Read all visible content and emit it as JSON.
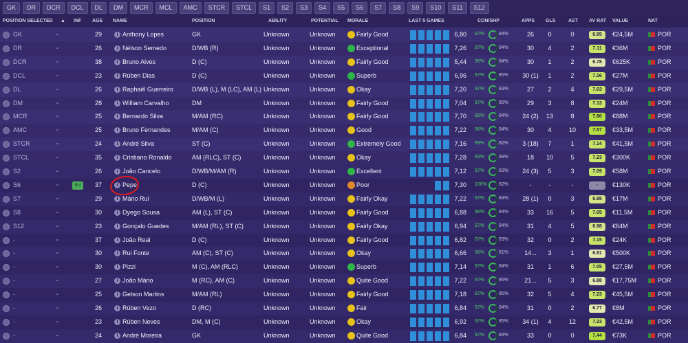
{
  "tabs": [
    "GK",
    "DR",
    "DCR",
    "DCL",
    "DL",
    "DM",
    "MCR",
    "MCL",
    "AMC",
    "STCR",
    "STCL",
    "S1",
    "S2",
    "S3",
    "S4",
    "S5",
    "S6",
    "S7",
    "S8",
    "S9",
    "S10",
    "S11",
    "S12"
  ],
  "columns": {
    "position_selected": "POSITION SELECTED",
    "inf": "INF",
    "age": "AGE",
    "name": "NAME",
    "position": "POSITION",
    "ability": "ABILITY",
    "potential": "POTENTIAL",
    "morale": "MORALE",
    "last5": "LAST 5 GAMES",
    "con_shp": "CON/SHP",
    "apps": "APPS",
    "gls": "GLS",
    "ast": "AST",
    "av_rat": "AV RAT",
    "value": "VALUE",
    "nat": "NAT"
  },
  "morale_colors": {
    "Fairly Good": "#e6c21a",
    "Exceptional": "#2fb54a",
    "Superb": "#2fb54a",
    "Okay": "#e6c21a",
    "Good": "#e6c21a",
    "Extremely Good": "#2fb54a",
    "Excellent": "#2fb54a",
    "Poor": "#e08a2c",
    "Fairly Okay": "#e6c21a",
    "Quite Good": "#e6c21a",
    "Fair": "#e6c21a"
  },
  "rows": [
    {
      "pos": "GK",
      "age": "29",
      "name": "Anthony Lopes",
      "position": "GK",
      "ability": "Unknown",
      "potential": "Unknown",
      "morale": "Fairly Good",
      "last5": [
        14,
        14,
        14,
        14,
        14
      ],
      "rating": "6,80",
      "con": "97%",
      "shp": "84%",
      "apps": "26",
      "gls": "0",
      "ast": "0",
      "avrat": "6.95",
      "avcolor": "#d7e38b",
      "value": "€24,5M",
      "nat": "POR"
    },
    {
      "pos": "DR",
      "age": "26",
      "name": "Nélson Semedo",
      "position": "D/WB (R)",
      "ability": "Unknown",
      "potential": "Unknown",
      "morale": "Exceptional",
      "last5": [
        14,
        14,
        14,
        14,
        14
      ],
      "rating": "7,26",
      "con": "97%",
      "shp": "84%",
      "apps": "30",
      "gls": "4",
      "ast": "2",
      "avrat": "7.11",
      "avcolor": "#c7e36a",
      "value": "€36M",
      "nat": "POR"
    },
    {
      "pos": "DCR",
      "age": "38",
      "name": "Bruno Alves",
      "position": "D (C)",
      "ability": "Unknown",
      "potential": "Unknown",
      "morale": "Fairly Good",
      "last5": [
        14,
        14,
        14,
        14,
        14
      ],
      "rating": "5,44",
      "con": "96%",
      "shp": "84%",
      "apps": "30",
      "gls": "1",
      "ast": "2",
      "avrat": "6.78",
      "avcolor": "#e3e8b0",
      "value": "€625K",
      "nat": "POR"
    },
    {
      "pos": "DCL",
      "age": "23",
      "name": "Rúben Dias",
      "position": "D (C)",
      "ability": "Unknown",
      "potential": "Unknown",
      "morale": "Superb",
      "last5": [
        14,
        14,
        14,
        14,
        14
      ],
      "rating": "6,96",
      "con": "97%",
      "shp": "85%",
      "apps": "30 (1)",
      "gls": "1",
      "ast": "2",
      "avrat": "7.16",
      "avcolor": "#c7e36a",
      "value": "€27M",
      "nat": "POR"
    },
    {
      "pos": "DL",
      "age": "26",
      "name": "Raphaël Guerreiro",
      "position": "D/WB (L), M (LC), AM (L)",
      "ability": "Unknown",
      "potential": "Unknown",
      "morale": "Okay",
      "last5": [
        14,
        14,
        14,
        14,
        14
      ],
      "rating": "7,20",
      "con": "97%",
      "shp": "83%",
      "apps": "27",
      "gls": "2",
      "ast": "4",
      "avrat": "7.03",
      "avcolor": "#c7e36a",
      "value": "€29,5M",
      "nat": "POR"
    },
    {
      "pos": "DM",
      "age": "28",
      "name": "William Carvalho",
      "position": "DM",
      "ability": "Unknown",
      "potential": "Unknown",
      "morale": "Fairly Good",
      "last5": [
        14,
        14,
        14,
        14,
        14
      ],
      "rating": "7,04",
      "con": "97%",
      "shp": "85%",
      "apps": "29",
      "gls": "3",
      "ast": "8",
      "avrat": "7.13",
      "avcolor": "#c7e36a",
      "value": "€24M",
      "nat": "POR"
    },
    {
      "pos": "MCR",
      "age": "25",
      "name": "Bernardo Silva",
      "position": "M/AM (RC)",
      "ability": "Unknown",
      "potential": "Unknown",
      "morale": "Fairly Good",
      "last5": [
        14,
        14,
        14,
        14,
        14
      ],
      "rating": "7,70",
      "con": "96%",
      "shp": "84%",
      "apps": "24 (2)",
      "gls": "13",
      "ast": "8",
      "avrat": "7.80",
      "avcolor": "#b5e043",
      "value": "€88M",
      "nat": "POR"
    },
    {
      "pos": "AMC",
      "age": "25",
      "name": "Bruno Fernandes",
      "position": "M/AM (C)",
      "ability": "Unknown",
      "potential": "Unknown",
      "morale": "Good",
      "last5": [
        14,
        14,
        14,
        14,
        14
      ],
      "rating": "7,22",
      "con": "96%",
      "shp": "84%",
      "apps": "30",
      "gls": "4",
      "ast": "10",
      "avrat": "7.57",
      "avcolor": "#b5e043",
      "value": "€33,5M",
      "nat": "POR"
    },
    {
      "pos": "STCR",
      "age": "24",
      "name": "André Silva",
      "position": "ST (C)",
      "ability": "Unknown",
      "potential": "Unknown",
      "morale": "Extremely Good",
      "last5": [
        14,
        14,
        14,
        14,
        14
      ],
      "rating": "7,16",
      "con": "99%",
      "shp": "82%",
      "apps": "3 (18)",
      "gls": "7",
      "ast": "1",
      "avrat": "7.14",
      "avcolor": "#c7e36a",
      "value": "€41,5M",
      "nat": "POR"
    },
    {
      "pos": "STCL",
      "age": "35",
      "name": "Cristiano Ronaldo",
      "position": "AM (RLC), ST (C)",
      "ability": "Unknown",
      "potential": "Unknown",
      "morale": "Okay",
      "last5": [
        14,
        14,
        14,
        14,
        14
      ],
      "rating": "7,28",
      "con": "93%",
      "shp": "99%",
      "apps": "18",
      "gls": "10",
      "ast": "5",
      "avrat": "7.23",
      "avcolor": "#c7e36a",
      "value": "€300K",
      "nat": "POR"
    },
    {
      "pos": "S2",
      "age": "26",
      "name": "João Cancelo",
      "position": "D/WB/M/AM (R)",
      "ability": "Unknown",
      "potential": "Unknown",
      "morale": "Excellent",
      "last5": [
        14,
        14,
        14,
        14,
        14
      ],
      "rating": "7,12",
      "con": "97%",
      "shp": "83%",
      "apps": "24 (3)",
      "gls": "5",
      "ast": "3",
      "avrat": "7.09",
      "avcolor": "#c7e36a",
      "value": "€58M",
      "nat": "POR"
    },
    {
      "pos": "S6",
      "age": "37",
      "name": "Pepe",
      "position": "D (C)",
      "ability": "Unknown",
      "potential": "Unknown",
      "morale": "Poor",
      "last5": [
        0,
        0,
        0,
        14,
        14
      ],
      "rating": "7,30",
      "con": "100%",
      "shp": "62%",
      "apps": "-",
      "gls": "-",
      "ast": "-",
      "avrat": "-",
      "avcolor": "#8d87a8",
      "value": "€130K",
      "nat": "POR",
      "inf": "Rst"
    },
    {
      "pos": "S7",
      "age": "29",
      "name": "Mário Rui",
      "position": "D/WB/M (L)",
      "ability": "Unknown",
      "potential": "Unknown",
      "morale": "Fairly Okay",
      "last5": [
        14,
        14,
        14,
        14,
        14
      ],
      "rating": "7,22",
      "con": "97%",
      "shp": "84%",
      "apps": "28 (1)",
      "gls": "0",
      "ast": "3",
      "avrat": "6.98",
      "avcolor": "#d7e38b",
      "value": "€17M",
      "nat": "POR"
    },
    {
      "pos": "S8",
      "age": "30",
      "name": "Dyego Sousa",
      "position": "AM (L), ST (C)",
      "ability": "Unknown",
      "potential": "Unknown",
      "morale": "Fairly Good",
      "last5": [
        14,
        14,
        14,
        14,
        14
      ],
      "rating": "6,88",
      "con": "96%",
      "shp": "84%",
      "apps": "33",
      "gls": "16",
      "ast": "5",
      "avrat": "7.05",
      "avcolor": "#c7e36a",
      "value": "€11,5M",
      "nat": "POR"
    },
    {
      "pos": "S12",
      "age": "23",
      "name": "Gonçalo Guedes",
      "position": "M/AM (RL), ST (C)",
      "ability": "Unknown",
      "potential": "Unknown",
      "morale": "Fairly Okay",
      "last5": [
        14,
        14,
        14,
        14,
        14
      ],
      "rating": "6,94",
      "con": "97%",
      "shp": "84%",
      "apps": "31",
      "gls": "4",
      "ast": "5",
      "avrat": "6.98",
      "avcolor": "#d7e38b",
      "value": "€64M",
      "nat": "POR"
    },
    {
      "pos": "-",
      "age": "37",
      "name": "João Real",
      "position": "D (C)",
      "ability": "Unknown",
      "potential": "Unknown",
      "morale": "Fairly Good",
      "last5": [
        14,
        14,
        14,
        14,
        14
      ],
      "rating": "6,82",
      "con": "97%",
      "shp": "83%",
      "apps": "32",
      "gls": "0",
      "ast": "2",
      "avrat": "7.15",
      "avcolor": "#c7e36a",
      "value": "€24K",
      "nat": "POR"
    },
    {
      "pos": "-",
      "age": "30",
      "name": "Rui Fonte",
      "position": "AM (C), ST (C)",
      "ability": "Unknown",
      "potential": "Unknown",
      "morale": "Okay",
      "last5": [
        14,
        14,
        14,
        14,
        14
      ],
      "rating": "6,66",
      "con": "98%",
      "shp": "81%",
      "apps": "14...",
      "gls": "3",
      "ast": "1",
      "avrat": "6.81",
      "avcolor": "#e3e8b0",
      "value": "€500K",
      "nat": "POR"
    },
    {
      "pos": "-",
      "age": "30",
      "name": "Pizzi",
      "position": "M (C), AM (RLC)",
      "ability": "Unknown",
      "potential": "Unknown",
      "morale": "Superb",
      "last5": [
        14,
        14,
        14,
        14,
        14
      ],
      "rating": "7,14",
      "con": "97%",
      "shp": "84%",
      "apps": "31",
      "gls": "1",
      "ast": "6",
      "avrat": "7.05",
      "avcolor": "#c7e36a",
      "value": "€27,5M",
      "nat": "POR"
    },
    {
      "pos": "-",
      "age": "27",
      "name": "João Mário",
      "position": "M (RC), AM (C)",
      "ability": "Unknown",
      "potential": "Unknown",
      "morale": "Quite Good",
      "last5": [
        14,
        14,
        14,
        14,
        14
      ],
      "rating": "7,22",
      "con": "97%",
      "shp": "85%",
      "apps": "21...",
      "gls": "5",
      "ast": "3",
      "avrat": "6.88",
      "avcolor": "#e3e8b0",
      "value": "€17,75M",
      "nat": "POR"
    },
    {
      "pos": "-",
      "age": "25",
      "name": "Gelson Martins",
      "position": "M/AM (RL)",
      "ability": "Unknown",
      "potential": "Unknown",
      "morale": "Fairly Good",
      "last5": [
        14,
        14,
        14,
        14,
        14
      ],
      "rating": "7,18",
      "con": "97%",
      "shp": "85%",
      "apps": "32",
      "gls": "5",
      "ast": "4",
      "avrat": "7.23",
      "avcolor": "#c7e36a",
      "value": "€45,5M",
      "nat": "POR"
    },
    {
      "pos": "-",
      "age": "26",
      "name": "Rúben Vezo",
      "position": "D (RC)",
      "ability": "Unknown",
      "potential": "Unknown",
      "morale": "Fair",
      "last5": [
        14,
        14,
        14,
        14,
        14
      ],
      "rating": "6,84",
      "con": "97%",
      "shp": "84%",
      "apps": "31",
      "gls": "0",
      "ast": "2",
      "avrat": "6.77",
      "avcolor": "#e3e8b0",
      "value": "€8M",
      "nat": "POR"
    },
    {
      "pos": "-",
      "age": "23",
      "name": "Rúben Neves",
      "position": "DM, M (C)",
      "ability": "Unknown",
      "potential": "Unknown",
      "morale": "Okay",
      "last5": [
        14,
        14,
        14,
        14,
        14
      ],
      "rating": "6,92",
      "con": "97%",
      "shp": "85%",
      "apps": "34 (1)",
      "gls": "4",
      "ast": "12",
      "avrat": "7.23",
      "avcolor": "#c7e36a",
      "value": "€42,5M",
      "nat": "POR"
    },
    {
      "pos": "-",
      "age": "24",
      "name": "André Moreira",
      "position": "GK",
      "ability": "Unknown",
      "potential": "Unknown",
      "morale": "Quite Good",
      "last5": [
        14,
        14,
        14,
        14,
        14
      ],
      "rating": "6,84",
      "con": "97%",
      "shp": "84%",
      "apps": "33",
      "gls": "0",
      "ast": "0",
      "avrat": "7.44",
      "avcolor": "#b5e043",
      "value": "€73K",
      "nat": "POR"
    }
  ]
}
